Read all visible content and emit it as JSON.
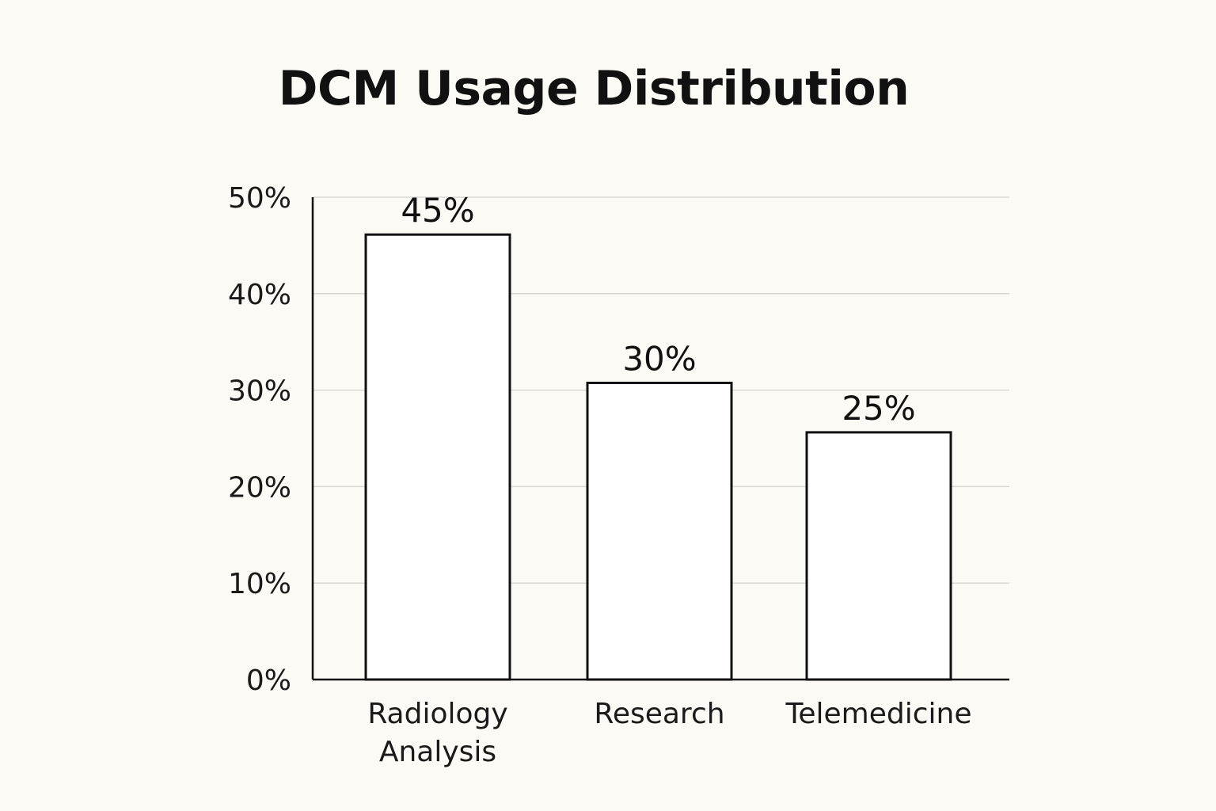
{
  "chart_data": {
    "type": "bar",
    "title": "DCM Usage Distribution",
    "xlabel": "",
    "ylabel": "",
    "categories": [
      [
        "Radiology",
        "Analysis"
      ],
      [
        "Research"
      ],
      [
        "Telemedicine"
      ]
    ],
    "values": [
      45,
      30,
      25
    ],
    "data_labels": [
      "45%",
      "30%",
      "25%"
    ],
    "ylim": [
      0,
      50
    ],
    "yticks": [
      0,
      10,
      20,
      30,
      40,
      50
    ],
    "ytick_labels": [
      "0%",
      "10%",
      "20%",
      "30%",
      "40%",
      "50%"
    ],
    "grid": true,
    "legend": "none",
    "colors": {
      "bar_fill": "#ffffff",
      "bar_stroke": "#111111",
      "grid": "#d9d9d4",
      "axis": "#111111",
      "background": "#fcfaf5"
    }
  }
}
